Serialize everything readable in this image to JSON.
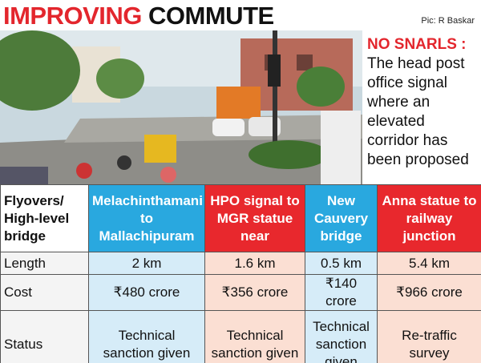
{
  "header": {
    "title_red": "IMPROVING",
    "title_black": "COMMUTE",
    "credit": "Pic: R Baskar"
  },
  "caption": {
    "label": "NO SNARLS :",
    "text": "The head post office signal where an elevated corridor has been proposed"
  },
  "table": {
    "header": [
      "Flyovers/ High-level bridge",
      "Melachinthamani to Mallachipuram",
      "HPO signal to MGR statue near",
      "New Cauvery bridge",
      "Anna statue to railway junction"
    ],
    "rows": [
      [
        "Length",
        "2 km",
        "1.6 km",
        "0.5 km",
        "5.4 km"
      ],
      [
        "Cost",
        "₹480 crore",
        "₹356 crore",
        "₹140 crore",
        "₹966 crore"
      ],
      [
        "Status",
        "Technical sanction given",
        "Technical sanction given",
        "Technical sanction given",
        "Re-traffic survey"
      ]
    ]
  }
}
